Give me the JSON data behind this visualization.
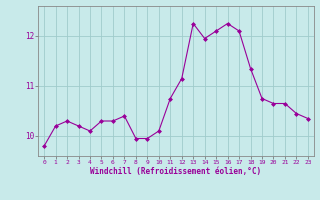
{
  "x": [
    0,
    1,
    2,
    3,
    4,
    5,
    6,
    7,
    8,
    9,
    10,
    11,
    12,
    13,
    14,
    15,
    16,
    17,
    18,
    19,
    20,
    21,
    22,
    23
  ],
  "y": [
    9.8,
    10.2,
    10.3,
    10.2,
    10.1,
    10.3,
    10.3,
    10.4,
    9.95,
    9.95,
    10.1,
    10.75,
    11.15,
    12.25,
    11.95,
    12.1,
    12.25,
    12.1,
    11.35,
    10.75,
    10.65,
    10.65,
    10.45,
    10.35
  ],
  "line_color": "#990099",
  "marker_color": "#990099",
  "bg_color": "#c8eaea",
  "grid_color": "#a0cccc",
  "xlabel": "Windchill (Refroidissement éolien,°C)",
  "xlabel_color": "#990099",
  "tick_color": "#990099",
  "ylim": [
    9.6,
    12.6
  ],
  "yticks": [
    10,
    11,
    12
  ],
  "xticks": [
    0,
    1,
    2,
    3,
    4,
    5,
    6,
    7,
    8,
    9,
    10,
    11,
    12,
    13,
    14,
    15,
    16,
    17,
    18,
    19,
    20,
    21,
    22,
    23
  ]
}
